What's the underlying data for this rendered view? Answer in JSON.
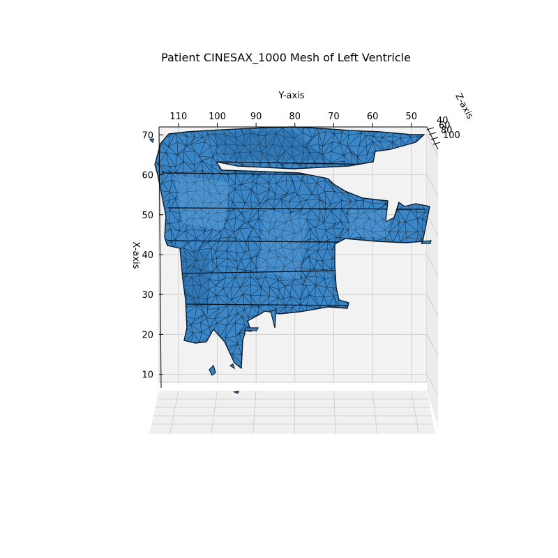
{
  "chart_data": {
    "type": "mesh3d",
    "title": "Patient CINESAX_1000 Mesh of Left Ventricle",
    "xlabel": "X-axis",
    "ylabel": "Y-axis",
    "zlabel": "Z-axis",
    "x_ticks": [
      "10",
      "20",
      "30",
      "40",
      "50",
      "60",
      "70"
    ],
    "y_ticks": [
      "110",
      "100",
      "90",
      "80",
      "70",
      "60",
      "50"
    ],
    "z_ticks": [
      "40",
      "60",
      "80",
      "100"
    ],
    "xlim": [
      8,
      72
    ],
    "ylim": [
      115,
      46
    ],
    "grid": true,
    "face_color": "#3a86c8",
    "edge_color": "#0b1a2a",
    "pane_color": "#f2f2f2"
  }
}
